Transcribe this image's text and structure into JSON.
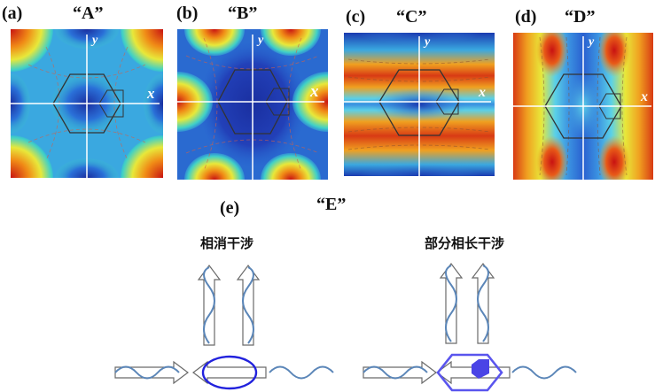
{
  "panels": [
    {
      "label": "(a)",
      "quote": "“A”",
      "x_axis": "x",
      "y_axis": "y"
    },
    {
      "label": "(b)",
      "quote": "“B”",
      "x_axis": "x",
      "y_axis": "y"
    },
    {
      "label": "(c)",
      "quote": "“C”",
      "x_axis": "x",
      "y_axis": "y"
    },
    {
      "label": "(d)",
      "quote": "“D”",
      "x_axis": "x",
      "y_axis": "y"
    }
  ],
  "panel_e": {
    "label": "(e)",
    "quote": "“E”"
  },
  "schematics": {
    "left_title": "相消干涉",
    "right_title": "部分相长干涉"
  },
  "colors": {
    "hot": "#c81212",
    "cold": "#1a2fa0",
    "accent_blue": "#2222dd",
    "hexagon_blue": "#5a55ee",
    "arrow_outline": "#6a6a6a",
    "wave": "#5b86b8"
  }
}
